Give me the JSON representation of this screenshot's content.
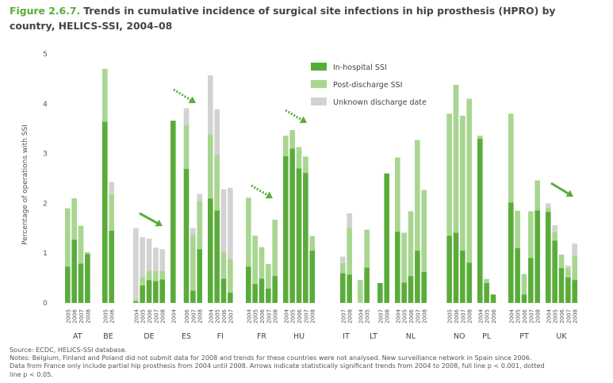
{
  "figure": {
    "number": "Figure 2.6.7.",
    "title": "Trends in cumulative incidence of surgical site infections in hip prosthesis (HPRO) by country, HELICS-SSI, 2004–08"
  },
  "colors": {
    "in_hospital": "#5aac3a",
    "post_discharge": "#a8d690",
    "unknown": "#d2d2d2",
    "arrow": "#5aac3a"
  },
  "notes": {
    "source": "Source: ECDC, HELICS-SSI database.",
    "line2": "Notes: Belgium, Finland and Poland did not submit data for 2008 and trends for these countries were not analysed. New surveillance network in Spain since 2006.",
    "line3": "Data from France only include partial hip prosthesis from 2004 until 2008. Arrows indicate statistically significant trends from 2004 to 2008, full line p < 0.001, dotted",
    "line4": "line p < 0.05."
  },
  "chart_data": {
    "type": "bar",
    "stacked": true,
    "ylabel": "Percentage of operations with SSI",
    "ylim": [
      0,
      5
    ],
    "yticks": [
      0,
      1,
      2,
      3,
      4,
      5
    ],
    "grid": false,
    "legend_position": "top-center",
    "series": [
      {
        "name": "In-hospital SSI",
        "color": "#5aac3a"
      },
      {
        "name": "Post-discharge SSI",
        "color": "#a8d690"
      },
      {
        "name": "Unknown discharge date",
        "color": "#d2d2d2"
      }
    ],
    "countries": [
      {
        "name": "AT",
        "bars": [
          {
            "year": "2005",
            "values": [
              0.73,
              1.17,
              0
            ]
          },
          {
            "year": "2006",
            "values": [
              1.27,
              0.83,
              0
            ]
          },
          {
            "year": "2007",
            "values": [
              0.79,
              0.76,
              0
            ]
          },
          {
            "year": "2008",
            "values": [
              0.98,
              0.04,
              0
            ]
          }
        ]
      },
      {
        "name": "BE",
        "bars": [
          {
            "year": "2005",
            "values": [
              3.64,
              1.06,
              0
            ]
          },
          {
            "year": "2006",
            "values": [
              1.45,
              0.73,
              0.25
            ]
          }
        ]
      },
      {
        "name": "DE",
        "bars": [
          {
            "year": "2004",
            "values": [
              0.03,
              0.04,
              1.43
            ]
          },
          {
            "year": "2005",
            "values": [
              0.35,
              0.17,
              0.8
            ]
          },
          {
            "year": "2006",
            "values": [
              0.46,
              0.19,
              0.64
            ]
          },
          {
            "year": "2007",
            "values": [
              0.44,
              0.2,
              0.47
            ]
          },
          {
            "year": "2008",
            "values": [
              0.47,
              0.17,
              0.44
            ]
          }
        ]
      },
      {
        "name": "ES",
        "bars": [
          {
            "year": "2004",
            "values": [
              3.66,
              0,
              0
            ]
          },
          {
            "year": "2006",
            "values": [
              2.69,
              0.89,
              0.33
            ]
          },
          {
            "year": "2007",
            "values": [
              0.25,
              1.11,
              0.14
            ]
          },
          {
            "year": "2008",
            "values": [
              1.08,
              0.97,
              0.14
            ]
          }
        ]
      },
      {
        "name": "FI",
        "bars": [
          {
            "year": "2004",
            "values": [
              2.1,
              1.29,
              1.18
            ]
          },
          {
            "year": "2005",
            "values": [
              1.86,
              1.11,
              0.92
            ]
          },
          {
            "year": "2006",
            "values": [
              0.49,
              0.54,
              1.25
            ]
          },
          {
            "year": "2007",
            "values": [
              0.21,
              0.67,
              1.43
            ]
          }
        ]
      },
      {
        "name": "FR",
        "bars": [
          {
            "year": "2004",
            "values": [
              0.73,
              1.37,
              0.02
            ]
          },
          {
            "year": "2005",
            "values": [
              0.38,
              0.97,
              0
            ]
          },
          {
            "year": "2006",
            "values": [
              0.49,
              0.63,
              0
            ]
          },
          {
            "year": "2007",
            "values": [
              0.29,
              0.49,
              0
            ]
          },
          {
            "year": "2008",
            "values": [
              0.54,
              1.13,
              0
            ]
          }
        ]
      },
      {
        "name": "HU",
        "bars": [
          {
            "year": "2004",
            "values": [
              2.95,
              0.41,
              0
            ]
          },
          {
            "year": "2005",
            "values": [
              3.1,
              0.37,
              0
            ]
          },
          {
            "year": "2006",
            "values": [
              2.7,
              0.43,
              0
            ]
          },
          {
            "year": "2007",
            "values": [
              2.61,
              0.33,
              0
            ]
          },
          {
            "year": "2008",
            "values": [
              1.05,
              0.29,
              0
            ]
          }
        ]
      },
      {
        "name": "IT",
        "bars": [
          {
            "year": "2007",
            "values": [
              0.6,
              0.2,
              0.13
            ]
          },
          {
            "year": "2008",
            "values": [
              0.57,
              0.94,
              0.29
            ]
          }
        ]
      },
      {
        "name": "LT",
        "bars": [
          {
            "year": "2004",
            "values": [
              0,
              0.46,
              0
            ]
          },
          {
            "year": "2005",
            "values": [
              0.71,
              0.76,
              0
            ]
          },
          {
            "year": "2007",
            "values": [
              0.4,
              0,
              0
            ]
          },
          {
            "year": "2008",
            "values": [
              2.6,
              0,
              0
            ]
          }
        ]
      },
      {
        "name": "NL",
        "bars": [
          {
            "year": "2004",
            "values": [
              1.43,
              1.49,
              0
            ]
          },
          {
            "year": "2005",
            "values": [
              0.41,
              1.0,
              0
            ]
          },
          {
            "year": "2006",
            "values": [
              0.54,
              1.3,
              0
            ]
          },
          {
            "year": "2007",
            "values": [
              1.05,
              2.22,
              0
            ]
          },
          {
            "year": "2008",
            "values": [
              0.62,
              1.65,
              0
            ]
          }
        ]
      },
      {
        "name": "NO",
        "bars": [
          {
            "year": "2005",
            "values": [
              1.35,
              2.45,
              0
            ]
          },
          {
            "year": "2006",
            "values": [
              1.41,
              2.97,
              0
            ]
          },
          {
            "year": "2007",
            "values": [
              1.05,
              2.71,
              0
            ]
          },
          {
            "year": "2008",
            "values": [
              0.81,
              3.29,
              0
            ]
          }
        ]
      },
      {
        "name": "PL",
        "bars": [
          {
            "year": "2004",
            "values": [
              3.3,
              0.06,
              0
            ]
          },
          {
            "year": "2005",
            "values": [
              0.4,
              0.08,
              0
            ]
          },
          {
            "year": "2006",
            "values": [
              0.17,
              0,
              0
            ]
          }
        ]
      },
      {
        "name": "PT",
        "bars": [
          {
            "year": "2004",
            "values": [
              2.02,
              1.78,
              0
            ]
          },
          {
            "year": "2005",
            "values": [
              1.1,
              0.75,
              0
            ]
          },
          {
            "year": "2006",
            "values": [
              0.17,
              0.41,
              0
            ]
          },
          {
            "year": "2007",
            "values": [
              0.9,
              0.94,
              0
            ]
          },
          {
            "year": "2008",
            "values": [
              1.86,
              0.6,
              0
            ]
          }
        ]
      },
      {
        "name": "UK",
        "bars": [
          {
            "year": "2004",
            "values": [
              1.83,
              0.08,
              0.09
            ]
          },
          {
            "year": "2005",
            "values": [
              1.25,
              0.17,
              0.14
            ]
          },
          {
            "year": "2006",
            "values": [
              0.7,
              0.27,
              0
            ]
          },
          {
            "year": "2007",
            "values": [
              0.51,
              0.19,
              0.05
            ]
          },
          {
            "year": "2008",
            "values": [
              0.46,
              0.48,
              0.25
            ]
          }
        ]
      }
    ],
    "annotations": [
      {
        "country": "DE",
        "style": "full"
      },
      {
        "country": "ES",
        "style": "dotted"
      },
      {
        "country": "FR",
        "style": "dotted"
      },
      {
        "country": "HU",
        "style": "dotted"
      },
      {
        "country": "UK",
        "style": "full"
      }
    ]
  }
}
